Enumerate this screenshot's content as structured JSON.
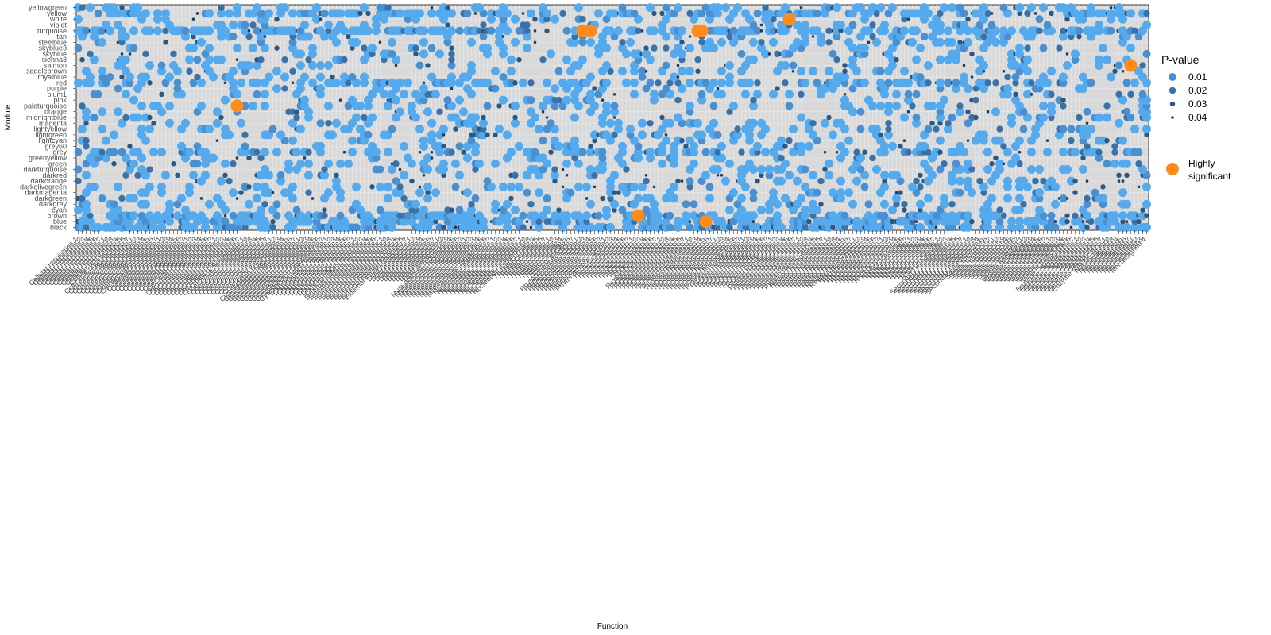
{
  "chart_data": {
    "type": "scatter",
    "title": "",
    "xlabel": "Function",
    "ylabel": "Module",
    "modules": [
      "black",
      "blue",
      "brown",
      "cyan",
      "darkgrey",
      "darkgreen",
      "darkmagenta",
      "darkolivegreen",
      "darkorange",
      "darkred",
      "darkturquoise",
      "green",
      "greenyellow",
      "grey",
      "grey60",
      "lightcyan",
      "lightgreen",
      "lightyellow",
      "magenta",
      "midnightblue",
      "orange",
      "paleturquoise",
      "pink",
      "plum1",
      "purple",
      "red",
      "royalblue",
      "saddlebrown",
      "salmon",
      "sienna3",
      "skyblue",
      "skyblue3",
      "steelblue",
      "tan",
      "turquoise",
      "violet",
      "white",
      "yellow",
      "yellowgreen"
    ],
    "function_count": 270,
    "function_labels": [
      "Cellular respiration",
      "Cell cycle organisation",
      "Cell wall organisation",
      "Chromatin organisation",
      "Coenzyme metabolism",
      "Cytoskeleton organisation",
      "DNA damage response",
      "External stimuli response",
      "Lipid metabolism",
      "Multi-process regulation",
      "Nucleotide metabolism",
      "Nutrient uptake",
      "Phytohormone action",
      "Photosynthesis",
      "Protein biosynthesis",
      "Protein homeostasis",
      "Protein modification",
      "Protein translocation",
      "Redox homeostasis",
      "RNA biosynthesis",
      "RNA processing",
      "Secondary metabolism",
      "Solute transport",
      "Vesicle trafficking",
      "Enzyme classification",
      "Not assigned"
    ],
    "pvalue_legend": {
      "title": "P-value",
      "breaks": [
        0.01,
        0.02,
        0.03,
        0.04
      ],
      "colors": [
        "#4a90d0",
        "#3a72a8",
        "#2c5780",
        "#1e3d5c"
      ]
    },
    "highlight_legend": {
      "label_line1": "Highly",
      "label_line2": "significant",
      "color": "#ff8c1a"
    },
    "points_color_base": "#55aaee",
    "highly_significant_points": [
      {
        "function_index": 40,
        "module": "paleturquoise"
      },
      {
        "function_index": 127,
        "module": "turquoise"
      },
      {
        "function_index": 129,
        "module": "turquoise"
      },
      {
        "function_index": 156,
        "module": "turquoise"
      },
      {
        "function_index": 157,
        "module": "turquoise"
      },
      {
        "function_index": 179,
        "module": "white"
      },
      {
        "function_index": 141,
        "module": "brown"
      },
      {
        "function_index": 158,
        "module": "blue"
      },
      {
        "function_index": 265,
        "module": "salmon"
      }
    ]
  }
}
